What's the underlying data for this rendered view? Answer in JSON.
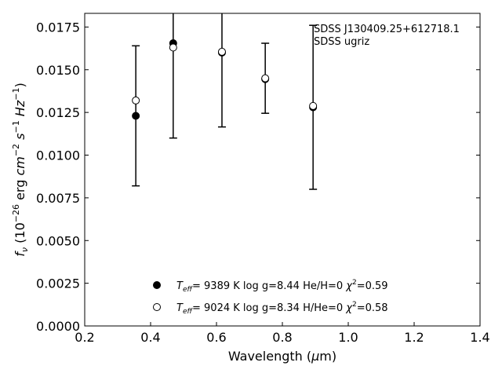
{
  "chart_data": {
    "type": "scatter",
    "xlim": [
      0.2,
      1.4
    ],
    "ylim": [
      0.0,
      0.0183
    ],
    "x_ticks": [
      0.2,
      0.4,
      0.6,
      0.8,
      1.0,
      1.2,
      1.4
    ],
    "x_tick_labels": [
      "0.2",
      "0.4",
      "0.6",
      "0.8",
      "1.0",
      "1.2",
      "1.4"
    ],
    "y_ticks": [
      0.0,
      0.0025,
      0.005,
      0.0075,
      0.01,
      0.0125,
      0.015,
      0.0175
    ],
    "y_tick_labels": [
      "0.0000",
      "0.0025",
      "0.0050",
      "0.0075",
      "0.0100",
      "0.0125",
      "0.0150",
      "0.0175"
    ],
    "xlabel": {
      "pre": "Wavelength (",
      "mu": "μ",
      "post": "m)"
    },
    "ylabel": {
      "f": "f",
      "nu": "ν",
      "open": " (10",
      "exp1": "−26",
      "mid": " erg ",
      "cm": "cm",
      "exp2": "−2",
      "s": "s",
      "exp3": "−1",
      "hz": "Hz",
      "exp4": "−1",
      "close": ")"
    },
    "annotation": {
      "line1": "SDSS J130409.25+612718.1",
      "line2": "SDSS ugriz"
    },
    "observed": {
      "x": [
        0.3551,
        0.4686,
        0.6166,
        0.748,
        0.8932
      ],
      "y": [
        0.0123,
        0.0166,
        0.016,
        0.0145,
        0.0128
      ],
      "yerr": [
        0.0041,
        0.0056,
        0.00435,
        0.00205,
        0.0048
      ]
    },
    "series": [
      {
        "marker": "filled",
        "x": [
          0.3551,
          0.4686,
          0.6166,
          0.748,
          0.8932
        ],
        "y": [
          0.0123,
          0.01655,
          0.016,
          0.01445,
          0.0128
        ]
      },
      {
        "marker": "open",
        "x": [
          0.3551,
          0.4686,
          0.6166,
          0.748,
          0.8932
        ],
        "y": [
          0.0132,
          0.0163,
          0.01605,
          0.0145,
          0.01288
        ]
      }
    ],
    "legend": {
      "position": "bottom-center",
      "entries": [
        {
          "marker": "filled",
          "teff_sym": "T",
          "teff_sub": "eff",
          "text1": "=  9389 K  log g=8.44  He/H=0  ",
          "chi": "χ",
          "chi_sup": "2",
          "text2": "=0.59"
        },
        {
          "marker": "open",
          "teff_sym": "T",
          "teff_sub": "eff",
          "text1": "=  9024 K  log g=8.34  H/He=0  ",
          "chi": "χ",
          "chi_sup": "2",
          "text2": "=0.58"
        }
      ]
    }
  }
}
